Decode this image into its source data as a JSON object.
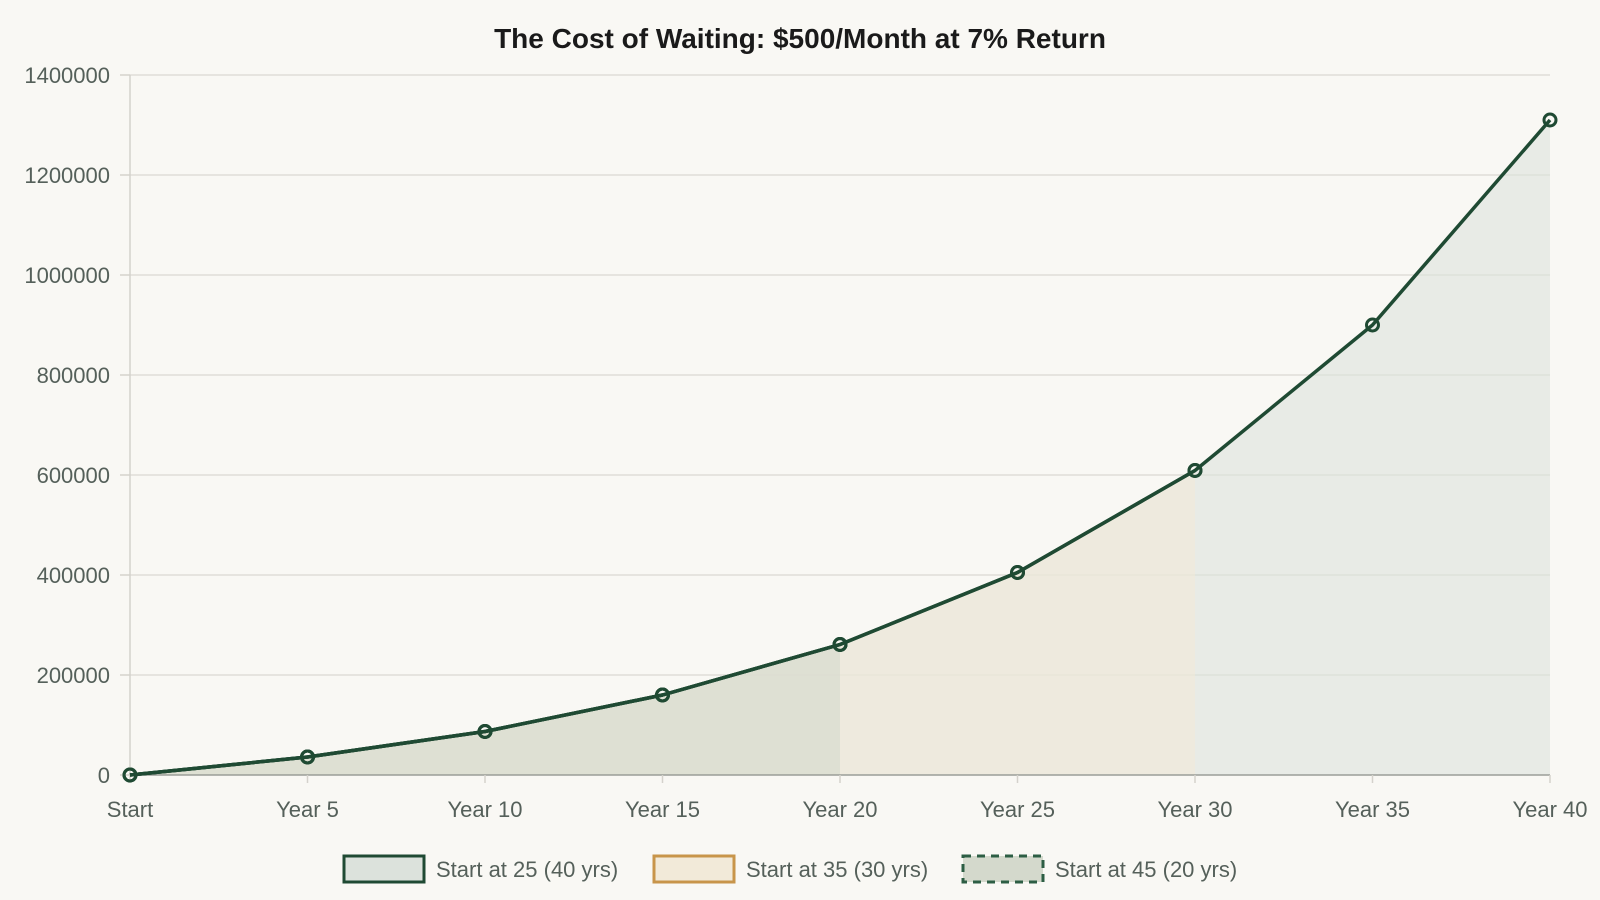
{
  "chart_data": {
    "type": "area",
    "title": "The Cost of Waiting: $500/Month at 7% Return",
    "xlabel": "",
    "ylabel": "",
    "categories": [
      "Start",
      "Year 5",
      "Year 10",
      "Year 15",
      "Year 20",
      "Year 25",
      "Year 30",
      "Year 35",
      "Year 40"
    ],
    "ylim": [
      0,
      1400000
    ],
    "yticks": [
      "0",
      "200000",
      "400000",
      "600000",
      "800000",
      "1000000",
      "1200000",
      "1400000"
    ],
    "grid": true,
    "legend_position": "bottom",
    "series": [
      {
        "name": "Start at 25 (40 yrs)",
        "values": [
          0,
          36000,
          87000,
          160000,
          261000,
          405000,
          609000,
          900000,
          1310000
        ],
        "line_color": "#1f4a33",
        "fill_color": "#dce2dc",
        "line_style": "solid"
      },
      {
        "name": "Start at 35 (30 yrs)",
        "values": [
          0,
          36000,
          87000,
          160000,
          261000,
          405000,
          609000,
          null,
          null
        ],
        "line_color": "#c8954a",
        "fill_color": "#f2ead9",
        "line_style": "solid"
      },
      {
        "name": "Start at 45 (20 yrs)",
        "values": [
          0,
          36000,
          87000,
          160000,
          261000,
          null,
          null,
          null,
          null
        ],
        "line_color": "#2d5e44",
        "fill_color": "#d4d9cc",
        "line_style": "dashed"
      }
    ]
  }
}
